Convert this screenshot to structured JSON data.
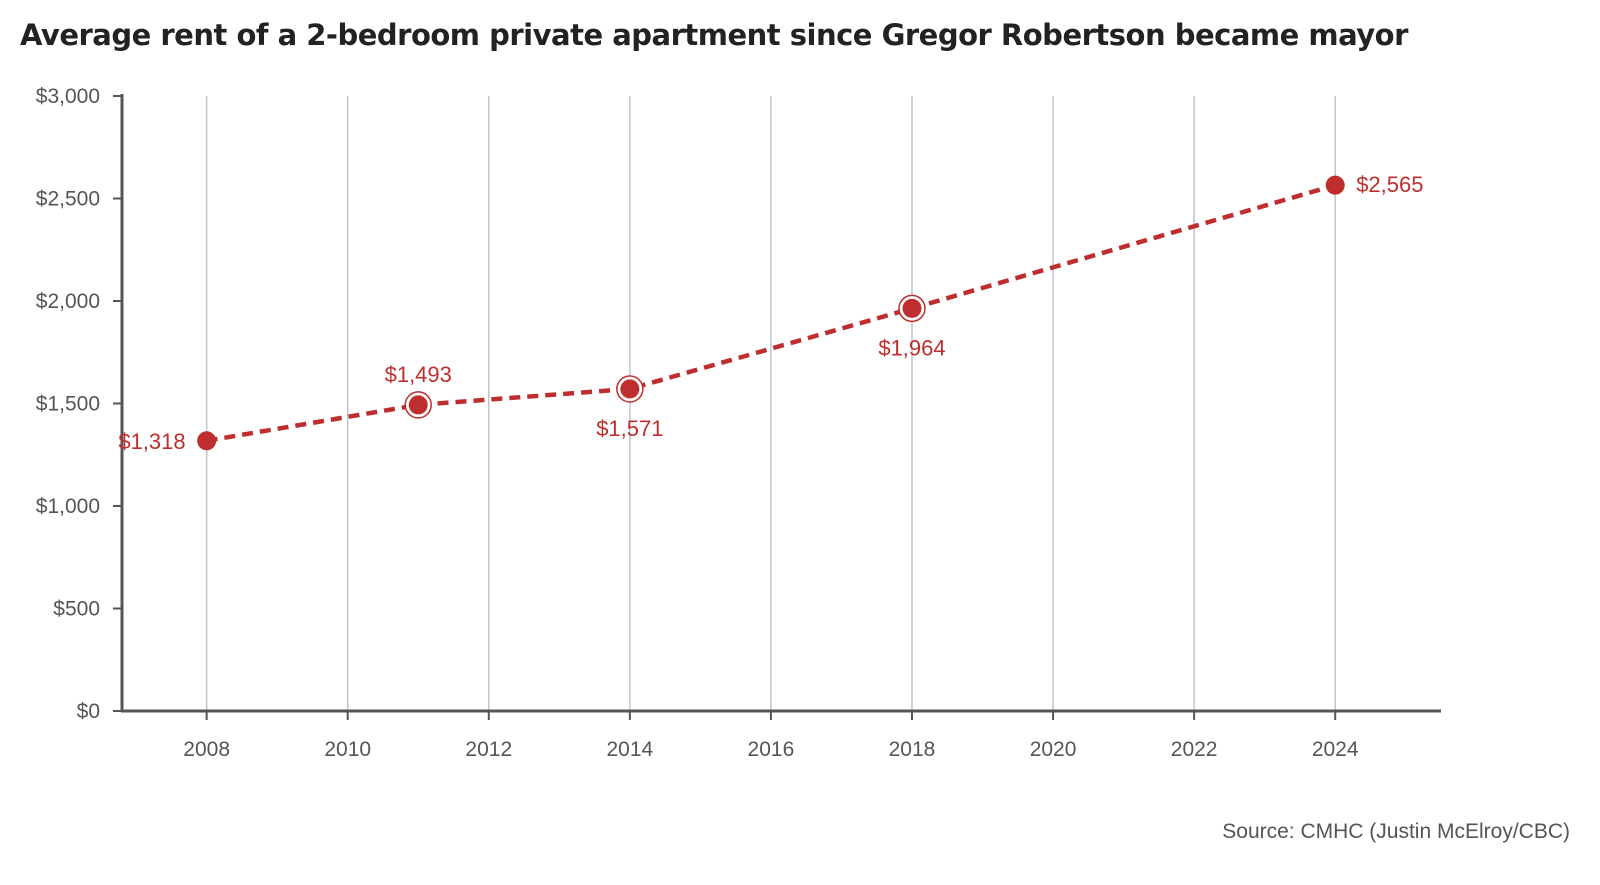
{
  "chart_data": {
    "type": "line",
    "title": "Average rent of a 2-bedroom private apartment since Gregor Robertson became mayor",
    "source": "Source: CMHC (Justin McElroy/CBC)",
    "xlabel": "",
    "ylabel": "",
    "xlim": [
      2006.8,
      2025.5
    ],
    "ylim": [
      0,
      3000
    ],
    "x_ticks": [
      2008,
      2010,
      2012,
      2014,
      2016,
      2018,
      2020,
      2022,
      2024
    ],
    "y_ticks": [
      0,
      500,
      1000,
      1500,
      2000,
      2500,
      3000
    ],
    "y_tick_labels": [
      "$0",
      "$500",
      "$1,000",
      "$1,500",
      "$2,000",
      "$2,500",
      "$3,000"
    ],
    "grid": "vertical",
    "line_style": "dashed",
    "color": "#bf2e2e",
    "series": [
      {
        "points": [
          {
            "x": 2008,
            "y": 1318,
            "label": "$1,318",
            "label_pos": "left",
            "ring": false
          },
          {
            "x": 2011,
            "y": 1493,
            "label": "$1,493",
            "label_pos": "above",
            "ring": true
          },
          {
            "x": 2014,
            "y": 1571,
            "label": "$1,571",
            "label_pos": "below",
            "ring": true
          },
          {
            "x": 2018,
            "y": 1964,
            "label": "$1,964",
            "label_pos": "below",
            "ring": true
          },
          {
            "x": 2024,
            "y": 2565,
            "label": "$2,565",
            "label_pos": "right",
            "ring": false
          }
        ]
      }
    ]
  }
}
